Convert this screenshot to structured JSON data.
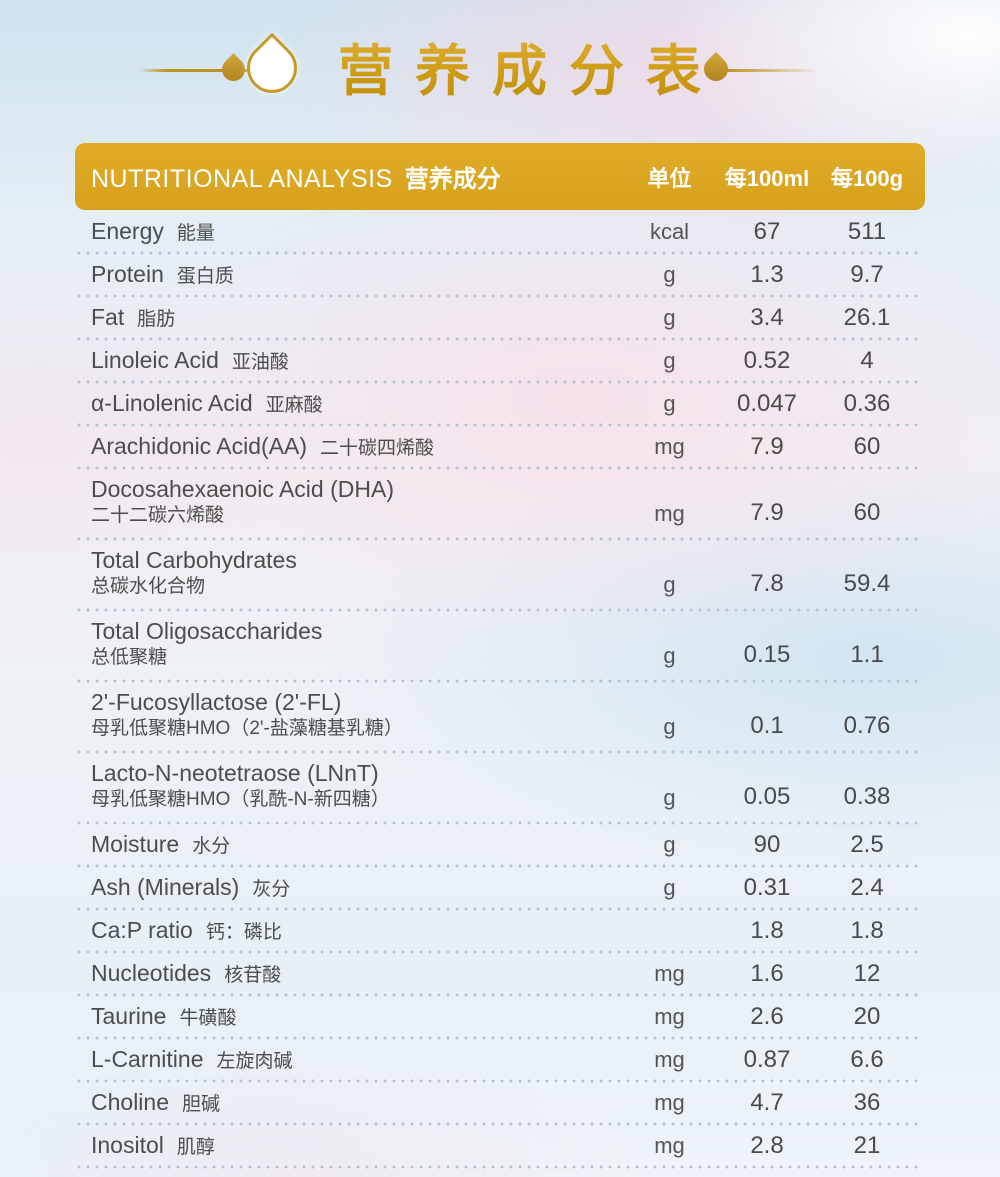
{
  "title": "营养成分表",
  "colors": {
    "accent_gold": "#D7A11B",
    "title_gold": "#CF9D17",
    "text_gray": "#4D4D4D",
    "dot_line": "#B2C2D0",
    "header_text": "#FFFFFF"
  },
  "ornaments": {
    "left_drop_large": "white drop with gold outline",
    "left_drop_small": "solid gold drop",
    "right_drop_small": "solid gold drop"
  },
  "table": {
    "header": {
      "title_en": "NUTRITIONAL ANALYSIS",
      "title_zh": "营养成分",
      "col_unit": "单位",
      "col_per_100ml": "每100ml",
      "col_per_100g": "每100g"
    },
    "rows": [
      {
        "en": "Energy",
        "zh": "能量",
        "unit": "kcal",
        "per_100ml": "67",
        "per_100g": "511",
        "two_line": false
      },
      {
        "en": "Protein",
        "zh": "蛋白质",
        "unit": "g",
        "per_100ml": "1.3",
        "per_100g": "9.7",
        "two_line": false
      },
      {
        "en": "Fat",
        "zh": "脂肪",
        "unit": "g",
        "per_100ml": "3.4",
        "per_100g": "26.1",
        "two_line": false
      },
      {
        "en": "Linoleic Acid",
        "zh": "亚油酸",
        "unit": "g",
        "per_100ml": "0.52",
        "per_100g": "4",
        "two_line": false
      },
      {
        "en": "α-Linolenic Acid",
        "zh": "亚麻酸",
        "unit": "g",
        "per_100ml": "0.047",
        "per_100g": "0.36",
        "two_line": false
      },
      {
        "en": "Arachidonic Acid(AA)",
        "zh": "二十碳四烯酸",
        "unit": "mg",
        "per_100ml": "7.9",
        "per_100g": "60",
        "two_line": false
      },
      {
        "en": "Docosahexaenoic Acid (DHA)",
        "zh": "二十二碳六烯酸",
        "unit": "mg",
        "per_100ml": "7.9",
        "per_100g": "60",
        "two_line": true
      },
      {
        "en": "Total Carbohydrates",
        "zh": "总碳水化合物",
        "unit": "g",
        "per_100ml": "7.8",
        "per_100g": "59.4",
        "two_line": true
      },
      {
        "en": "Total Oligosaccharides",
        "zh": "总低聚糖",
        "unit": "g",
        "per_100ml": "0.15",
        "per_100g": "1.1",
        "two_line": true
      },
      {
        "en": "2'-Fucosyllactose (2'-FL)",
        "zh": "母乳低聚糖HMO（2'-盐藻糖基乳糖）",
        "unit": "g",
        "per_100ml": "0.1",
        "per_100g": "0.76",
        "two_line": true
      },
      {
        "en": "Lacto-N-neotetraose (LNnT)",
        "zh": "母乳低聚糖HMO（乳酰-N-新四糖）",
        "unit": "g",
        "per_100ml": "0.05",
        "per_100g": "0.38",
        "two_line": true
      },
      {
        "en": "Moisture",
        "zh": "水分",
        "unit": "g",
        "per_100ml": "90",
        "per_100g": "2.5",
        "two_line": false
      },
      {
        "en": "Ash (Minerals)",
        "zh": "灰分",
        "unit": "g",
        "per_100ml": "0.31",
        "per_100g": "2.4",
        "two_line": false
      },
      {
        "en": "Ca:P ratio",
        "zh": "钙：磷比",
        "unit": "",
        "per_100ml": "1.8",
        "per_100g": "1.8",
        "two_line": false
      },
      {
        "en": "Nucleotides",
        "zh": "核苷酸",
        "unit": "mg",
        "per_100ml": "1.6",
        "per_100g": "12",
        "two_line": false
      },
      {
        "en": "Taurine",
        "zh": "牛磺酸",
        "unit": "mg",
        "per_100ml": "2.6",
        "per_100g": "20",
        "two_line": false
      },
      {
        "en": "L-Carnitine",
        "zh": "左旋肉碱",
        "unit": "mg",
        "per_100ml": "0.87",
        "per_100g": "6.6",
        "two_line": false
      },
      {
        "en": "Choline",
        "zh": "胆碱",
        "unit": "mg",
        "per_100ml": "4.7",
        "per_100g": "36",
        "two_line": false
      },
      {
        "en": "Inositol",
        "zh": "肌醇",
        "unit": "mg",
        "per_100ml": "2.8",
        "per_100g": "21",
        "two_line": false
      }
    ]
  }
}
